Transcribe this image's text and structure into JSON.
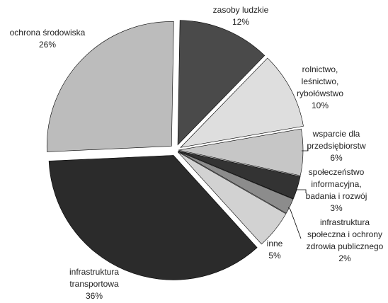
{
  "chart_data": {
    "type": "pie",
    "slices": [
      {
        "label": [
          "zasoby ludzkie"
        ],
        "pct_label": "12%",
        "value": 12,
        "color": "#4a4a4a"
      },
      {
        "label": [
          "rolnictwo,",
          "leśnictwo,",
          "rybołówstwo"
        ],
        "pct_label": "10%",
        "value": 10,
        "color": "#dedede"
      },
      {
        "label": [
          "wsparcie dla",
          "przedsiębiorstw"
        ],
        "pct_label": "6%",
        "value": 6,
        "color": "#c6c6c6"
      },
      {
        "label": [
          "społeczeństwo",
          "informacyjna,",
          "badania i rozwój"
        ],
        "pct_label": "3%",
        "value": 3,
        "color": "#333333"
      },
      {
        "label": [
          "infrastruktura",
          "społeczna i ochrony",
          "zdrowia publicznego"
        ],
        "pct_label": "2%",
        "value": 2,
        "color": "#8c8c8c"
      },
      {
        "label": [
          "inne"
        ],
        "pct_label": "5%",
        "value": 5,
        "color": "#d2d2d2"
      },
      {
        "label": [
          "infrastruktura",
          "transportowa"
        ],
        "pct_label": "36%",
        "value": 36,
        "color": "#2b2b2b"
      },
      {
        "label": [
          "ochrona środowiska"
        ],
        "pct_label": "26%",
        "value": 26,
        "color": "#bcbcbc"
      }
    ]
  }
}
